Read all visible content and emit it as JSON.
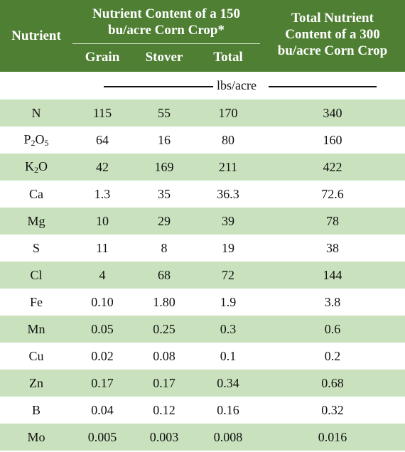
{
  "header": {
    "nutrient": "Nutrient",
    "group_line1": "Nutrient Content of a 150",
    "group_line2": "bu/acre Corn Crop*",
    "grain": "Grain",
    "stover": "Stover",
    "total": "Total",
    "total300_line1": "Total Nutrient",
    "total300_line2": "Content of a 300",
    "total300_line3": "bu/acre Corn Crop"
  },
  "units": "lbs/acre",
  "colors": {
    "header_bg": "#4f7f33",
    "row_shade": "#c9e2bd"
  },
  "rows": [
    {
      "name": "N",
      "sub_parts": [],
      "grain": "115",
      "stover": "55",
      "total": "170",
      "total300": "340"
    },
    {
      "name": "P",
      "sub1": "2",
      "mid": "O",
      "sub2": "5",
      "grain": "64",
      "stover": "16",
      "total": "80",
      "total300": "160"
    },
    {
      "name": "K",
      "sub1": "2",
      "mid": "O",
      "sub2": "",
      "grain": "42",
      "stover": "169",
      "total": "211",
      "total300": "422"
    },
    {
      "name": "Ca",
      "grain": "1.3",
      "stover": "35",
      "total": "36.3",
      "total300": "72.6"
    },
    {
      "name": "Mg",
      "grain": "10",
      "stover": "29",
      "total": "39",
      "total300": "78"
    },
    {
      "name": "S",
      "grain": "11",
      "stover": "8",
      "total": "19",
      "total300": "38"
    },
    {
      "name": "Cl",
      "grain": "4",
      "stover": "68",
      "total": "72",
      "total300": "144"
    },
    {
      "name": "Fe",
      "grain": "0.10",
      "stover": "1.80",
      "total": "1.9",
      "total300": "3.8"
    },
    {
      "name": "Mn",
      "grain": "0.05",
      "stover": "0.25",
      "total": "0.3",
      "total300": "0.6"
    },
    {
      "name": "Cu",
      "grain": "0.02",
      "stover": "0.08",
      "total": "0.1",
      "total300": "0.2"
    },
    {
      "name": "Zn",
      "grain": "0.17",
      "stover": "0.17",
      "total": "0.34",
      "total300": "0.68"
    },
    {
      "name": "B",
      "grain": "0.04",
      "stover": "0.12",
      "total": "0.16",
      "total300": "0.32"
    },
    {
      "name": "Mo",
      "grain": "0.005",
      "stover": "0.003",
      "total": "0.008",
      "total300": "0.016"
    }
  ]
}
